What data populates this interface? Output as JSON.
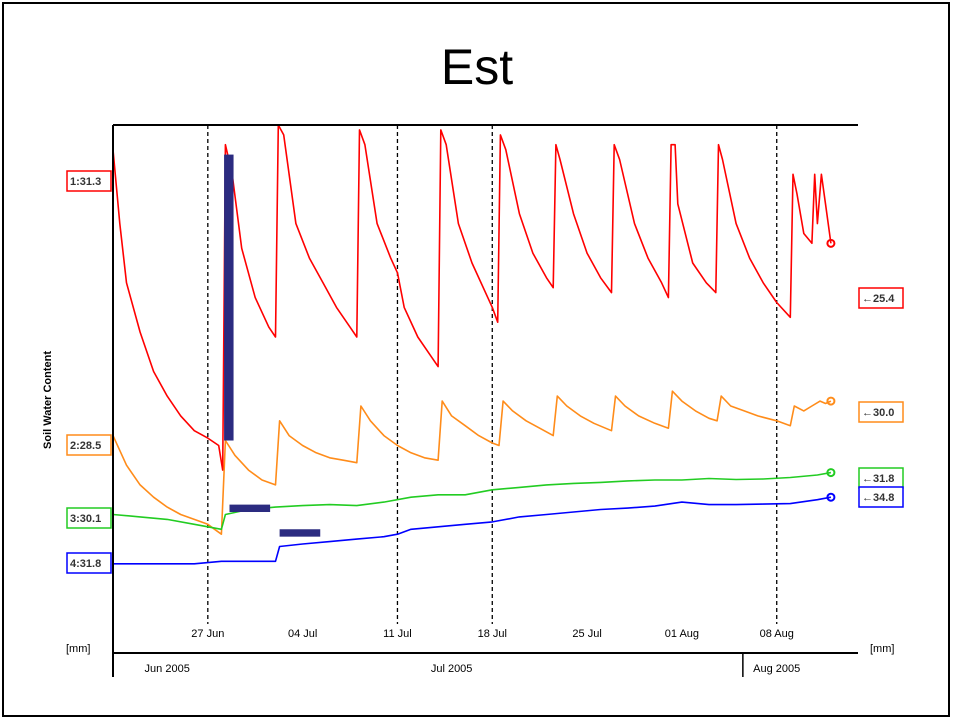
{
  "chart_data": {
    "type": "line",
    "title": "Est",
    "ylabel": "Soil Water Content",
    "y_unit_left": "[mm]",
    "y_unit_right": "[mm]",
    "x_range": [
      "2005-06-20",
      "2005-08-14"
    ],
    "x_ticks": [
      {
        "label": "27 Jun",
        "date": "2005-06-27"
      },
      {
        "label": "04 Jul",
        "date": "2005-07-04"
      },
      {
        "label": "11 Jul",
        "date": "2005-07-11"
      },
      {
        "label": "18 Jul",
        "date": "2005-07-18"
      },
      {
        "label": "25 Jul",
        "date": "2005-07-25"
      },
      {
        "label": "01 Aug",
        "date": "2005-08-01"
      },
      {
        "label": "08 Aug",
        "date": "2005-08-08"
      }
    ],
    "months": [
      {
        "label": "Jun 2005",
        "date": "2005-06-24"
      },
      {
        "label": "Jul 2005",
        "date": "2005-07-15"
      },
      {
        "label": "Aug 2005",
        "date": "2005-08-08"
      }
    ],
    "marker_lines": [
      "2005-06-27",
      "2005-07-11",
      "2005-07-18",
      "2005-08-08"
    ],
    "series": [
      {
        "name": "1",
        "color": "#ff0000",
        "start_label": "1:31.3",
        "end_label": "←25.4",
        "points": [
          [
            "2005-06-20",
            95
          ],
          [
            "2005-06-20.5",
            80
          ],
          [
            "2005-06-21",
            68
          ],
          [
            "2005-06-22",
            58
          ],
          [
            "2005-06-23",
            50
          ],
          [
            "2005-06-24",
            45
          ],
          [
            "2005-06-25",
            41
          ],
          [
            "2005-06-26",
            38
          ],
          [
            "2005-06-27",
            36.5
          ],
          [
            "2005-06-27.8",
            35
          ],
          [
            "2005-06-28.1",
            30
          ],
          [
            "2005-06-28.3",
            96
          ],
          [
            "2005-06-28.8",
            90
          ],
          [
            "2005-06-29.5",
            75
          ],
          [
            "2005-06-30.5",
            65
          ],
          [
            "2005-07-01.5",
            59
          ],
          [
            "2005-07-02",
            57
          ],
          [
            "2005-07-02.2",
            100
          ],
          [
            "2005-07-02.6",
            98
          ],
          [
            "2005-07-03.5",
            80
          ],
          [
            "2005-07-04.5",
            73
          ],
          [
            "2005-07-05.5",
            68
          ],
          [
            "2005-07-06.5",
            63
          ],
          [
            "2005-07-07.5",
            59
          ],
          [
            "2005-07-08",
            57
          ],
          [
            "2005-07-08.2",
            99
          ],
          [
            "2005-07-08.6",
            96
          ],
          [
            "2005-07-09.5",
            80
          ],
          [
            "2005-07-10.5",
            73
          ],
          [
            "2005-07-11",
            70
          ],
          [
            "2005-07-11.5",
            63
          ],
          [
            "2005-07-12.5",
            57
          ],
          [
            "2005-07-13.5",
            53
          ],
          [
            "2005-07-14",
            51
          ],
          [
            "2005-07-14.2",
            99
          ],
          [
            "2005-07-14.6",
            96
          ],
          [
            "2005-07-15.5",
            80
          ],
          [
            "2005-07-16.5",
            72
          ],
          [
            "2005-07-17.5",
            66
          ],
          [
            "2005-07-18",
            63
          ],
          [
            "2005-07-18.4",
            60
          ],
          [
            "2005-07-18.6",
            98
          ],
          [
            "2005-07-19",
            95
          ],
          [
            "2005-07-20",
            82
          ],
          [
            "2005-07-21",
            74
          ],
          [
            "2005-07-22",
            69
          ],
          [
            "2005-07-22.5",
            67
          ],
          [
            "2005-07-22.7",
            96
          ],
          [
            "2005-07-23",
            93
          ],
          [
            "2005-07-24",
            82
          ],
          [
            "2005-07-25",
            74
          ],
          [
            "2005-07-26",
            69
          ],
          [
            "2005-07-26.8",
            66
          ],
          [
            "2005-07-27",
            96
          ],
          [
            "2005-07-27.4",
            93
          ],
          [
            "2005-07-28.5",
            80
          ],
          [
            "2005-07-29.5",
            73
          ],
          [
            "2005-07-30.5",
            68
          ],
          [
            "2005-07-31",
            65
          ],
          [
            "2005-07-31.2",
            96
          ],
          [
            "2005-07-31.5",
            96
          ],
          [
            "2005-07-31.7",
            84
          ],
          [
            "2005-08-01.8",
            72
          ],
          [
            "2005-08-02.8",
            68
          ],
          [
            "2005-08-03.5",
            66
          ],
          [
            "2005-08-03.7",
            96
          ],
          [
            "2005-08-04",
            93
          ],
          [
            "2005-08-05",
            80
          ],
          [
            "2005-08-06",
            73
          ],
          [
            "2005-08-07",
            68
          ],
          [
            "2005-08-08",
            64
          ],
          [
            "2005-08-09",
            61
          ],
          [
            "2005-08-09.2",
            90
          ],
          [
            "2005-08-09.5",
            86
          ],
          [
            "2005-08-10",
            78
          ],
          [
            "2005-08-10.6",
            76
          ],
          [
            "2005-08-10.8",
            90
          ],
          [
            "2005-08-11",
            80
          ],
          [
            "2005-08-11.3",
            90
          ],
          [
            "2005-08-11.6",
            84
          ],
          [
            "2005-08-12",
            76
          ]
        ]
      },
      {
        "name": "2",
        "color": "#ff8c1a",
        "start_label": "2:28.5",
        "end_label": "←30.0",
        "points": [
          [
            "2005-06-20",
            37
          ],
          [
            "2005-06-21",
            31
          ],
          [
            "2005-06-22",
            27
          ],
          [
            "2005-06-23",
            24.5
          ],
          [
            "2005-06-24",
            22.5
          ],
          [
            "2005-06-25",
            21
          ],
          [
            "2005-06-26",
            20
          ],
          [
            "2005-06-27",
            19
          ],
          [
            "2005-06-27.5",
            18
          ],
          [
            "2005-06-28",
            17
          ],
          [
            "2005-06-28.3",
            36
          ],
          [
            "2005-06-29",
            33
          ],
          [
            "2005-06-30",
            30
          ],
          [
            "2005-07-01",
            28
          ],
          [
            "2005-07-02",
            27
          ],
          [
            "2005-07-02.3",
            40
          ],
          [
            "2005-07-03",
            37
          ],
          [
            "2005-07-04",
            35
          ],
          [
            "2005-07-05",
            33.5
          ],
          [
            "2005-07-06",
            32.5
          ],
          [
            "2005-07-07",
            32
          ],
          [
            "2005-07-08",
            31.5
          ],
          [
            "2005-07-08.3",
            43
          ],
          [
            "2005-07-09",
            40
          ],
          [
            "2005-07-10",
            37
          ],
          [
            "2005-07-11",
            35
          ],
          [
            "2005-07-12",
            33.5
          ],
          [
            "2005-07-13",
            32.5
          ],
          [
            "2005-07-14",
            32
          ],
          [
            "2005-07-14.3",
            44
          ],
          [
            "2005-07-15",
            41
          ],
          [
            "2005-07-16",
            39
          ],
          [
            "2005-07-17",
            37
          ],
          [
            "2005-07-18",
            35.5
          ],
          [
            "2005-07-18.5",
            35
          ],
          [
            "2005-07-18.8",
            44
          ],
          [
            "2005-07-19.5",
            42
          ],
          [
            "2005-07-20.5",
            40
          ],
          [
            "2005-07-21.5",
            38.5
          ],
          [
            "2005-07-22.5",
            37
          ],
          [
            "2005-07-22.8",
            45
          ],
          [
            "2005-07-23.5",
            43
          ],
          [
            "2005-07-24.5",
            41
          ],
          [
            "2005-07-25.5",
            39.5
          ],
          [
            "2005-07-26.8",
            38
          ],
          [
            "2005-07-27.1",
            45
          ],
          [
            "2005-07-27.8",
            43
          ],
          [
            "2005-07-28.8",
            41
          ],
          [
            "2005-07-30",
            39.5
          ],
          [
            "2005-07-31",
            38.5
          ],
          [
            "2005-07-31.3",
            46
          ],
          [
            "2005-08-01",
            44
          ],
          [
            "2005-08-02",
            42
          ],
          [
            "2005-08-03",
            40.5
          ],
          [
            "2005-08-03.6",
            40
          ],
          [
            "2005-08-03.9",
            45
          ],
          [
            "2005-08-04.6",
            43
          ],
          [
            "2005-08-05.6",
            42
          ],
          [
            "2005-08-06.6",
            41
          ],
          [
            "2005-08-08",
            40
          ],
          [
            "2005-08-09",
            39
          ],
          [
            "2005-08-09.3",
            43
          ],
          [
            "2005-08-10",
            42
          ],
          [
            "2005-08-10.6",
            43
          ],
          [
            "2005-08-11.2",
            44
          ],
          [
            "2005-08-11.6",
            43.5
          ],
          [
            "2005-08-12",
            44
          ]
        ]
      },
      {
        "name": "3",
        "color": "#22cc22",
        "start_label": "3:30.1",
        "end_label": "←31.8",
        "points": [
          [
            "2005-06-20",
            21
          ],
          [
            "2005-06-22",
            20.5
          ],
          [
            "2005-06-24",
            20
          ],
          [
            "2005-06-26",
            19
          ],
          [
            "2005-06-27",
            18.5
          ],
          [
            "2005-06-28",
            18
          ],
          [
            "2005-06-28.3",
            21
          ],
          [
            "2005-06-30",
            22
          ],
          [
            "2005-07-02",
            22.5
          ],
          [
            "2005-07-04",
            22.8
          ],
          [
            "2005-07-06",
            23
          ],
          [
            "2005-07-08",
            22.8
          ],
          [
            "2005-07-10",
            23.5
          ],
          [
            "2005-07-12",
            24.5
          ],
          [
            "2005-07-14",
            25
          ],
          [
            "2005-07-16",
            25
          ],
          [
            "2005-07-18",
            26
          ],
          [
            "2005-07-20",
            26.5
          ],
          [
            "2005-07-22",
            27
          ],
          [
            "2005-07-24",
            27.3
          ],
          [
            "2005-07-26",
            27.5
          ],
          [
            "2005-07-28",
            27.8
          ],
          [
            "2005-07-30",
            28
          ],
          [
            "2005-08-01",
            28
          ],
          [
            "2005-08-03",
            28.3
          ],
          [
            "2005-08-05",
            28.1
          ],
          [
            "2005-08-07",
            28.2
          ],
          [
            "2005-08-09",
            28.5
          ],
          [
            "2005-08-11",
            29
          ],
          [
            "2005-08-12",
            29.5
          ]
        ]
      },
      {
        "name": "4",
        "color": "#0000ff",
        "start_label": "4:31.8",
        "end_label": "←34.8",
        "points": [
          [
            "2005-06-20",
            11
          ],
          [
            "2005-06-22",
            11
          ],
          [
            "2005-06-24",
            11
          ],
          [
            "2005-06-26",
            11
          ],
          [
            "2005-06-28",
            11.5
          ],
          [
            "2005-07-02",
            11.5
          ],
          [
            "2005-07-02.3",
            14.5
          ],
          [
            "2005-07-04",
            15
          ],
          [
            "2005-07-06",
            15.5
          ],
          [
            "2005-07-08",
            16
          ],
          [
            "2005-07-10",
            16.5
          ],
          [
            "2005-07-11",
            17
          ],
          [
            "2005-07-12",
            18
          ],
          [
            "2005-07-14",
            18.5
          ],
          [
            "2005-07-16",
            19
          ],
          [
            "2005-07-18",
            19.5
          ],
          [
            "2005-07-20",
            20.5
          ],
          [
            "2005-07-22",
            21
          ],
          [
            "2005-07-24",
            21.5
          ],
          [
            "2005-07-26",
            22
          ],
          [
            "2005-07-28",
            22.3
          ],
          [
            "2005-07-30",
            22.7
          ],
          [
            "2005-08-01",
            23.5
          ],
          [
            "2005-08-03",
            23
          ],
          [
            "2005-08-05",
            23
          ],
          [
            "2005-08-07",
            23.1
          ],
          [
            "2005-08-09",
            23.2
          ],
          [
            "2005-08-11",
            24
          ],
          [
            "2005-08-12",
            24.5
          ]
        ]
      }
    ],
    "annotation_bars": [
      {
        "color": "#2b2b80",
        "x0": "2005-06-28.2",
        "x1": "2005-06-28.9",
        "y0": 36,
        "y1": 94
      },
      {
        "color": "#2b2b80",
        "x0": "2005-06-28.6",
        "x1": "2005-07-01.6",
        "y0": 21.5,
        "y1": 23
      },
      {
        "color": "#2b2b80",
        "x0": "2005-07-02.3",
        "x1": "2005-07-05.3",
        "y0": 16.5,
        "y1": 18
      }
    ]
  }
}
